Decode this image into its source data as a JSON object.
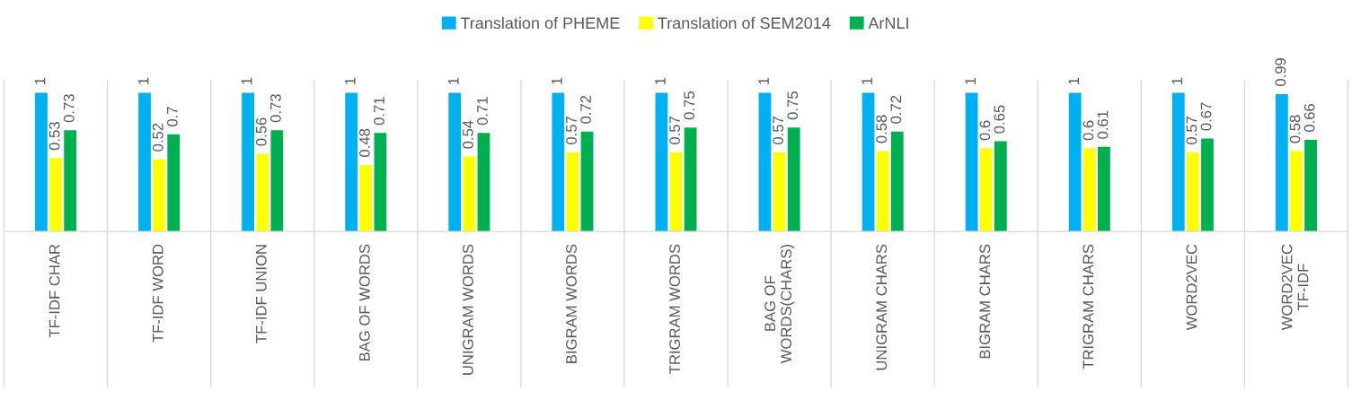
{
  "chart_data": {
    "type": "bar",
    "categories": [
      "TF-IDF CHAR",
      "TF-IDF WORD",
      "TF-IDF UNION",
      "BAG OF WORDS",
      "UNIGRAM WORDS",
      "BIGRAM WORDS",
      "TRIGRAM WORDS",
      "BAG OF WORDS(CHARS)",
      "UNIGRAM CHARS",
      "BIGRAM CHARS",
      "TRIGRAM CHARS",
      "WORD2VEC",
      "WORD2VEC TF-IDF"
    ],
    "series": [
      {
        "name": "Translation of PHEME",
        "color": "#00b0f0",
        "values": [
          1,
          1,
          1,
          1,
          1,
          1,
          1,
          1,
          1,
          1,
          1,
          1,
          0.99
        ]
      },
      {
        "name": "Translation of SEM2014",
        "color": "#ffff00",
        "values": [
          0.53,
          0.52,
          0.56,
          0.48,
          0.54,
          0.57,
          0.57,
          0.57,
          0.58,
          0.6,
          0.6,
          0.57,
          0.58
        ]
      },
      {
        "name": "ArNLI",
        "color": "#00b050",
        "values": [
          0.73,
          0.7,
          0.73,
          0.71,
          0.71,
          0.72,
          0.75,
          0.75,
          0.72,
          0.65,
          0.61,
          0.67,
          0.66
        ]
      }
    ],
    "data_labels": true,
    "legend": "top"
  }
}
